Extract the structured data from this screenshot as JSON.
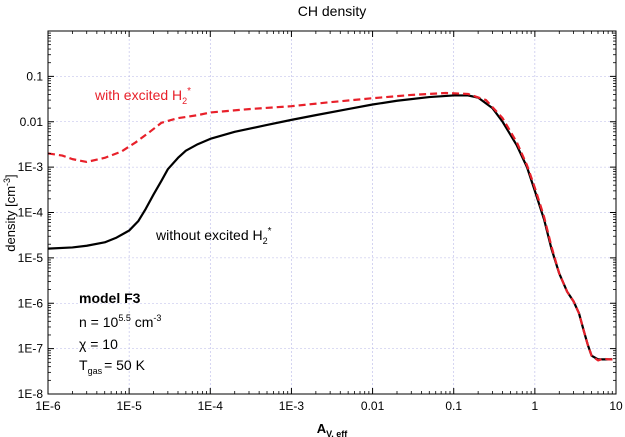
{
  "chart_data": {
    "type": "line",
    "title": "CH density",
    "xlabel": {
      "main": "A",
      "sub": "V, eff"
    },
    "ylabel": {
      "main": "density [cm",
      "sup": "-3",
      "end": "]"
    },
    "xscale": "log",
    "yscale": "log",
    "xlim": [
      1e-06,
      10
    ],
    "ylim": [
      1e-08,
      1
    ],
    "grid": true,
    "x_ticks": [
      {
        "value": 1e-06,
        "label": "1E-6"
      },
      {
        "value": 1e-05,
        "label": "1E-5"
      },
      {
        "value": 0.0001,
        "label": "1E-4"
      },
      {
        "value": 0.001,
        "label": "1E-3"
      },
      {
        "value": 0.01,
        "label": "0.01"
      },
      {
        "value": 0.1,
        "label": "0.1"
      },
      {
        "value": 1,
        "label": "1"
      },
      {
        "value": 10,
        "label": "10"
      }
    ],
    "y_ticks": [
      {
        "value": 1e-08,
        "label": "1E-8"
      },
      {
        "value": 1e-07,
        "label": "1E-7"
      },
      {
        "value": 1e-06,
        "label": "1E-6"
      },
      {
        "value": 1e-05,
        "label": "1E-5"
      },
      {
        "value": 0.0001,
        "label": "1E-4"
      },
      {
        "value": 0.001,
        "label": "1E-3"
      },
      {
        "value": 0.01,
        "label": "0.01"
      },
      {
        "value": 0.1,
        "label": "0.1"
      }
    ],
    "series": [
      {
        "label": {
          "main": "with excited H",
          "sub": "2",
          "sup": "*"
        },
        "color": "#e8202a",
        "dash": true,
        "points": [
          [
            1e-06,
            0.002
          ],
          [
            1.5e-06,
            0.0018
          ],
          [
            2e-06,
            0.0015
          ],
          [
            3e-06,
            0.0013
          ],
          [
            5e-06,
            0.0016
          ],
          [
            8e-06,
            0.0022
          ],
          [
            1.2e-05,
            0.0035
          ],
          [
            1.8e-05,
            0.006
          ],
          [
            2.5e-05,
            0.0095
          ],
          [
            4e-05,
            0.012
          ],
          [
            7e-05,
            0.014
          ],
          [
            0.0001,
            0.016
          ],
          [
            0.0003,
            0.019
          ],
          [
            0.001,
            0.022
          ],
          [
            0.003,
            0.027
          ],
          [
            0.01,
            0.033
          ],
          [
            0.03,
            0.039
          ],
          [
            0.08,
            0.043
          ],
          [
            0.15,
            0.041
          ],
          [
            0.25,
            0.03
          ],
          [
            0.4,
            0.012
          ],
          [
            0.6,
            0.0035
          ],
          [
            0.8,
            0.0011
          ],
          [
            1.0,
            0.00035
          ],
          [
            1.3,
            8e-05
          ],
          [
            1.6,
            1.8e-05
          ],
          [
            2.0,
            4.5e-06
          ],
          [
            2.5,
            1.8e-06
          ],
          [
            3.0,
            1.1e-06
          ],
          [
            3.5,
            6e-07
          ],
          [
            4.0,
            2.5e-07
          ],
          [
            4.5,
            1.2e-07
          ],
          [
            5.0,
            7e-08
          ],
          [
            6.0,
            5.5e-08
          ],
          [
            7.0,
            6e-08
          ],
          [
            8.0,
            5.8e-08
          ],
          [
            9.0,
            5.8e-08
          ]
        ]
      },
      {
        "label": {
          "main": "without excited H",
          "sub": "2",
          "sup": "*"
        },
        "color": "#000000",
        "dash": false,
        "points": [
          [
            1e-06,
            1.6e-05
          ],
          [
            2e-06,
            1.7e-05
          ],
          [
            3e-06,
            1.85e-05
          ],
          [
            5e-06,
            2.2e-05
          ],
          [
            7e-06,
            2.8e-05
          ],
          [
            1e-05,
            4e-05
          ],
          [
            1.3e-05,
            6.5e-05
          ],
          [
            1.6e-05,
            0.00012
          ],
          [
            2e-05,
            0.00025
          ],
          [
            2.5e-05,
            0.0005
          ],
          [
            3e-05,
            0.0009
          ],
          [
            4e-05,
            0.0016
          ],
          [
            5e-05,
            0.0023
          ],
          [
            7e-05,
            0.0032
          ],
          [
            0.0001,
            0.0042
          ],
          [
            0.0002,
            0.006
          ],
          [
            0.0005,
            0.0085
          ],
          [
            0.001,
            0.011
          ],
          [
            0.002,
            0.014
          ],
          [
            0.005,
            0.019
          ],
          [
            0.01,
            0.024
          ],
          [
            0.02,
            0.029
          ],
          [
            0.05,
            0.035
          ],
          [
            0.1,
            0.038
          ],
          [
            0.15,
            0.038
          ],
          [
            0.2,
            0.034
          ],
          [
            0.3,
            0.02
          ],
          [
            0.4,
            0.01
          ],
          [
            0.6,
            0.003
          ],
          [
            0.8,
            0.001
          ],
          [
            1.0,
            0.0003
          ],
          [
            1.3,
            7e-05
          ],
          [
            1.6,
            1.6e-05
          ],
          [
            2.0,
            4.5e-06
          ],
          [
            2.5,
            1.8e-06
          ],
          [
            3.0,
            1.1e-06
          ],
          [
            3.5,
            6e-07
          ],
          [
            4.0,
            2.5e-07
          ],
          [
            4.5,
            1.2e-07
          ],
          [
            5.0,
            7e-08
          ],
          [
            6.0,
            5.8e-08
          ],
          [
            9.0,
            5.8e-08
          ]
        ]
      }
    ],
    "annotations": {
      "model": "model F3",
      "density_line": {
        "prefix": "n = 10",
        "sup": "5.5",
        "middle": " cm",
        "sup2": "-3"
      },
      "chi_line": "χ = 10",
      "temp_line": {
        "main": "T",
        "sub": "gas",
        "rest": "= 50 K"
      }
    }
  }
}
